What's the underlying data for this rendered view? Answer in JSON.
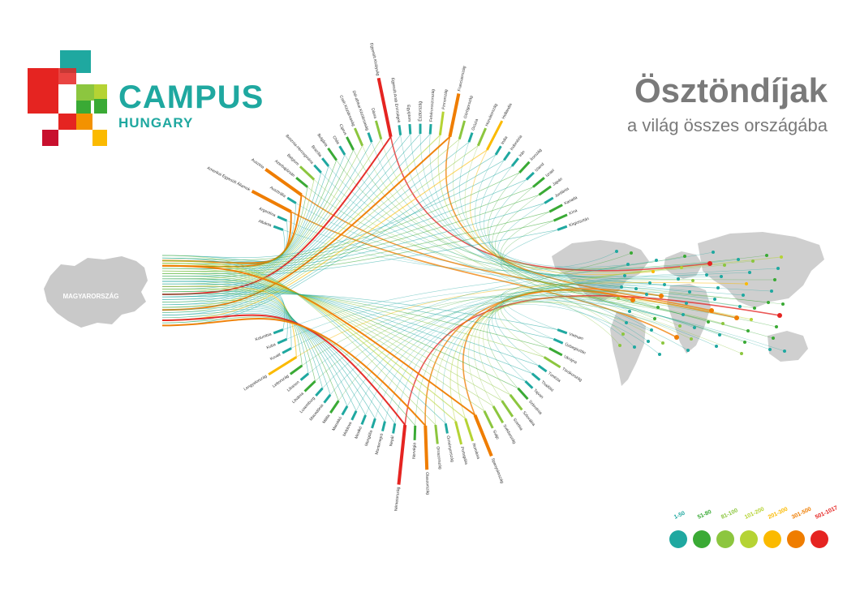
{
  "branding": {
    "logo_main": "CAMPUS",
    "logo_sub": "HUNGARY",
    "colors": [
      "#e52421",
      "#1fa8a0",
      "#8cc63f",
      "#f39200",
      "#fbba00"
    ]
  },
  "title": "Ösztöndíjak",
  "subtitle": "a világ összes országába",
  "origin_label": "MAGYARORSZÁG",
  "chart_data": {
    "type": "chord-flow",
    "title": "Ösztöndíjak",
    "subtitle": "a világ összes országába",
    "origin": "MAGYARORSZÁG",
    "legend": [
      {
        "label": "1-50",
        "color": "#1fa8a0"
      },
      {
        "label": "51-80",
        "color": "#3aaa35"
      },
      {
        "label": "81-100",
        "color": "#8cc63f"
      },
      {
        "label": "101-200",
        "color": "#b5d334"
      },
      {
        "label": "201-300",
        "color": "#fbba00"
      },
      {
        "label": "301-500",
        "color": "#ef7d00"
      },
      {
        "label": "501-1017",
        "color": "#e52421"
      }
    ],
    "destinations": [
      {
        "name": "Albánia",
        "bin": 1
      },
      {
        "name": "Argentína",
        "bin": 1
      },
      {
        "name": "Amerikai Egyesült Államok",
        "bin": 6
      },
      {
        "name": "Ausztrália",
        "bin": 1
      },
      {
        "name": "Ausztria",
        "bin": 6
      },
      {
        "name": "Azerbajdzsán",
        "bin": 2
      },
      {
        "name": "Belgium",
        "bin": 3
      },
      {
        "name": "Bosznia-Hercegovina",
        "bin": 1
      },
      {
        "name": "Brazília",
        "bin": 1
      },
      {
        "name": "Bulgária",
        "bin": 2
      },
      {
        "name": "Chile",
        "bin": 1
      },
      {
        "name": "Ciprus",
        "bin": 2
      },
      {
        "name": "Cseh Köztársaság",
        "bin": 3
      },
      {
        "name": "Dél-afrikai Köztársaság",
        "bin": 1
      },
      {
        "name": "Dánia",
        "bin": 3
      },
      {
        "name": "Egyesült Királyság",
        "bin": 7
      },
      {
        "name": "Egyesült Arab Emírségek",
        "bin": 1
      },
      {
        "name": "Egyiptom",
        "bin": 1
      },
      {
        "name": "Észtország",
        "bin": 1
      },
      {
        "name": "Fehéroroszország",
        "bin": 1
      },
      {
        "name": "Finnország",
        "bin": 4
      },
      {
        "name": "Franciaország",
        "bin": 6
      },
      {
        "name": "Görögország",
        "bin": 3
      },
      {
        "name": "Grúzia",
        "bin": 1
      },
      {
        "name": "Horvátország",
        "bin": 3
      },
      {
        "name": "Hollandia",
        "bin": 5
      },
      {
        "name": "India",
        "bin": 1
      },
      {
        "name": "Indonézia",
        "bin": 1
      },
      {
        "name": "Irán",
        "bin": 1
      },
      {
        "name": "Írország",
        "bin": 2
      },
      {
        "name": "Izland",
        "bin": 1
      },
      {
        "name": "Izrael",
        "bin": 2
      },
      {
        "name": "Japán",
        "bin": 2
      },
      {
        "name": "Jordánia",
        "bin": 1
      },
      {
        "name": "Kanada",
        "bin": 2
      },
      {
        "name": "Kína",
        "bin": 2
      },
      {
        "name": "Kirgizisztán",
        "bin": 1
      },
      {
        "name": "Kolumbia",
        "bin": 1
      },
      {
        "name": "Kuba",
        "bin": 1
      },
      {
        "name": "Kuvait",
        "bin": 1
      },
      {
        "name": "Lengyelország",
        "bin": 5
      },
      {
        "name": "Lettország",
        "bin": 2
      },
      {
        "name": "Libanon",
        "bin": 1
      },
      {
        "name": "Litvánia",
        "bin": 2
      },
      {
        "name": "Luxemburg",
        "bin": 1
      },
      {
        "name": "Macedónia",
        "bin": 1
      },
      {
        "name": "Málta",
        "bin": 2
      },
      {
        "name": "Marokkó",
        "bin": 1
      },
      {
        "name": "Moldova",
        "bin": 1
      },
      {
        "name": "Mexikó",
        "bin": 1
      },
      {
        "name": "Mongólia",
        "bin": 1
      },
      {
        "name": "Montenegró",
        "bin": 1
      },
      {
        "name": "Nepál",
        "bin": 1
      },
      {
        "name": "Németország",
        "bin": 7
      },
      {
        "name": "Norvégia",
        "bin": 2
      },
      {
        "name": "Olaszország",
        "bin": 6
      },
      {
        "name": "Oroszország",
        "bin": 3
      },
      {
        "name": "Örményország",
        "bin": 1
      },
      {
        "name": "Portugália",
        "bin": 4
      },
      {
        "name": "Románia",
        "bin": 4
      },
      {
        "name": "Spanyolország",
        "bin": 6
      },
      {
        "name": "Svájc",
        "bin": 3
      },
      {
        "name": "Svédország",
        "bin": 3
      },
      {
        "name": "Szerbia",
        "bin": 3
      },
      {
        "name": "Szlovákia",
        "bin": 3
      },
      {
        "name": "Szlovénia",
        "bin": 2
      },
      {
        "name": "Tajvan",
        "bin": 1
      },
      {
        "name": "Thaiföld",
        "bin": 1
      },
      {
        "name": "Tunézia",
        "bin": 1
      },
      {
        "name": "Törökország",
        "bin": 3
      },
      {
        "name": "Ukrajna",
        "bin": 2
      },
      {
        "name": "Üzbegisztán",
        "bin": 1
      },
      {
        "name": "Vietnam",
        "bin": 1
      }
    ]
  }
}
